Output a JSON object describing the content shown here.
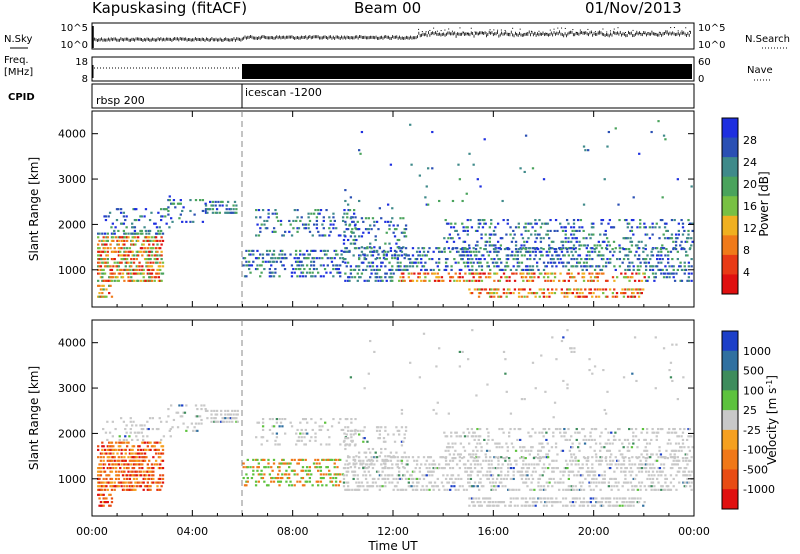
{
  "header": {
    "station": "Kapuskasing (fitACF)",
    "beam": "Beam 00",
    "date": "01/Nov/2013"
  },
  "summary_labels": {
    "nsky": "N.Sky",
    "nsearch": "N.Search",
    "freq_line1": "Freq.",
    "freq_line2": "[MHz]",
    "nave": "Nave",
    "cpid": "CPID",
    "noise_top_left": "10^5",
    "noise_bottom_left": "10^0",
    "noise_top_right": "10^5",
    "noise_bottom_right": "10^0",
    "freq_top": "18",
    "freq_bottom": "8",
    "nave_top": "60",
    "nave_bottom": "0"
  },
  "cpid_segments": [
    {
      "label": "rbsp 200",
      "start": "00:00"
    },
    {
      "label": "icescan -1200",
      "start": "06:00"
    }
  ],
  "chart_data": [
    {
      "type": "heatmap",
      "panel": "power",
      "xlabel": "",
      "ylabel": "Slant Range [km]",
      "x_range_hours": [
        0,
        24
      ],
      "ylim": [
        180,
        4500
      ],
      "y_ticks": [
        "1000",
        "2000",
        "3000",
        "4000"
      ],
      "colorbar": {
        "label": "Power [dB]",
        "ticks": [
          "4",
          "8",
          "12",
          "16",
          "20",
          "24",
          "28"
        ],
        "colors": [
          "#1e2fe0",
          "#2a50b4",
          "#3f8a8a",
          "#4aa35c",
          "#78c043",
          "#f0b020",
          "#f07a1a",
          "#e83a16",
          "#e01010"
        ]
      }
    },
    {
      "type": "heatmap",
      "panel": "velocity",
      "xlabel": "Time UT",
      "ylabel": "Slant Range [km]",
      "x_range_hours": [
        0,
        24
      ],
      "ylim": [
        180,
        4500
      ],
      "x_ticks": [
        "00:00",
        "04:00",
        "08:00",
        "12:00",
        "16:00",
        "20:00",
        "00:00"
      ],
      "y_ticks": [
        "1000",
        "2000",
        "3000",
        "4000"
      ],
      "colorbar": {
        "label_main": "Velocity [m s",
        "label_sup": "-1",
        "label_end": "]",
        "ticks": [
          "1000",
          "500",
          "100",
          "25",
          "-25",
          "-100",
          "-500",
          "-1000"
        ],
        "colors": [
          "#1c3fc8",
          "#3070a0",
          "#3e8c5c",
          "#5dc23d",
          "#c8c8c8",
          "#f5a020",
          "#f07818",
          "#e84c14",
          "#e01010"
        ]
      }
    }
  ]
}
